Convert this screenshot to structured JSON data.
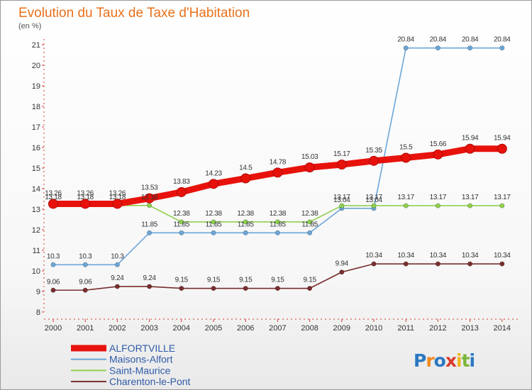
{
  "header": {
    "title": "Evolution du Taux de Taxe d'Habitation",
    "unit": "(en %)"
  },
  "brand": {
    "name": "Proxiti"
  },
  "chart_data": {
    "type": "line",
    "title": "Evolution du Taux de Taxe d'Habitation",
    "ylabel": "(en %)",
    "xlabel": "",
    "x": [
      "2000",
      "2001",
      "2002",
      "2003",
      "2004",
      "2005",
      "2006",
      "2007",
      "2008",
      "2009",
      "2010",
      "2011",
      "2012",
      "2013",
      "2014"
    ],
    "yticks": [
      "8",
      "9",
      "10",
      "11",
      "12",
      "13",
      "14",
      "15",
      "16",
      "17",
      "18",
      "19",
      "20",
      "21"
    ],
    "ylim": [
      8,
      21
    ],
    "grid": false,
    "legend_position": "bottom-left",
    "series": [
      {
        "name": "ALFORTVILLE",
        "color": "#e8120c",
        "emphasis": true,
        "values": [
          13.26,
          13.26,
          13.26,
          13.53,
          13.83,
          14.23,
          14.5,
          14.78,
          15.03,
          15.17,
          15.35,
          15.5,
          15.66,
          15.94,
          15.94
        ],
        "labels": [
          "13.26",
          "13.26",
          "13.26",
          "13.53",
          "13.83",
          "14.23",
          "14.5",
          "14.78",
          "15.03",
          "15.17",
          "15.35",
          "15.5",
          "15.66",
          "15.94",
          "15.94"
        ]
      },
      {
        "name": "Maisons-Alfort",
        "color": "#6ca6d8",
        "values": [
          10.3,
          10.3,
          10.3,
          11.85,
          11.85,
          11.85,
          11.85,
          11.85,
          11.85,
          13.04,
          13.04,
          20.84,
          20.84,
          20.84,
          20.84
        ],
        "labels": [
          "10.3",
          "10.3",
          "10.3",
          "11.85",
          "11.85",
          "11.85",
          "11.85",
          "11.85",
          "11.85",
          "13.04",
          "13.04",
          "20.84",
          "20.84",
          "20.84",
          "20.84"
        ]
      },
      {
        "name": "Saint-Maurice",
        "color": "#8fd14f",
        "values": [
          13.18,
          13.18,
          13.18,
          13.18,
          12.38,
          12.38,
          12.38,
          12.38,
          12.38,
          13.17,
          13.17,
          13.17,
          13.17,
          13.17,
          13.17
        ],
        "labels": [
          "13.18",
          "13.18",
          "13.18",
          "13.18",
          "12.38",
          "12.38",
          "12.38",
          "12.38",
          "12.38",
          "13.17",
          "13.17",
          "13.17",
          "13.17",
          "13.17",
          "13.17"
        ]
      },
      {
        "name": "Charenton-le-Pont",
        "color": "#7a2e2e",
        "values": [
          9.06,
          9.06,
          9.24,
          9.24,
          9.15,
          9.15,
          9.15,
          9.15,
          9.15,
          9.94,
          10.34,
          10.34,
          10.34,
          10.34,
          10.34
        ],
        "labels": [
          "9.06",
          "9.06",
          "9.24",
          "9.24",
          "9.15",
          "9.15",
          "9.15",
          "9.15",
          "9.15",
          "9.94",
          "10.34",
          "10.34",
          "10.34",
          "10.34",
          "10.34"
        ]
      }
    ]
  }
}
